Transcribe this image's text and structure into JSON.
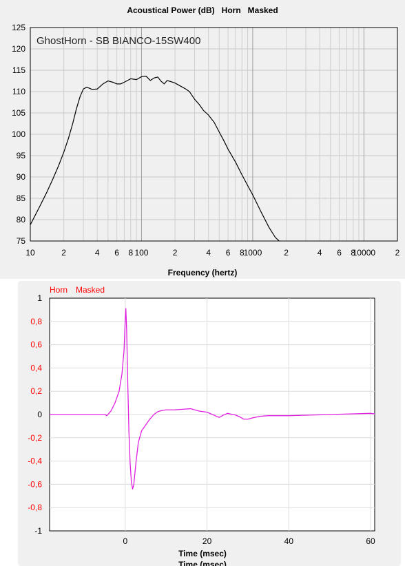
{
  "chart_data": [
    {
      "type": "line",
      "title": "Acoustical Power (dB)   Horn   Masked",
      "annotation": "GhostHorn - SB BIANCO-15SW400",
      "xlabel": "Frequency (hertz)",
      "ylabel": "",
      "xscale": "log",
      "xlim": [
        10,
        20000
      ],
      "ylim": [
        75,
        125
      ],
      "grid": true,
      "y_ticks": [
        "125",
        "120",
        "115",
        "110",
        "105",
        "100",
        "95",
        "90",
        "85",
        "80",
        "75"
      ],
      "x_ticks": [
        {
          "value": 10,
          "label": "10"
        },
        {
          "value": 20,
          "label": "2"
        },
        {
          "value": 40,
          "label": "4"
        },
        {
          "value": 60,
          "label": "6"
        },
        {
          "value": 80,
          "label": "8"
        },
        {
          "value": 100,
          "label": "100"
        },
        {
          "value": 200,
          "label": "2"
        },
        {
          "value": 400,
          "label": "4"
        },
        {
          "value": 600,
          "label": "6"
        },
        {
          "value": 800,
          "label": "8"
        },
        {
          "value": 1000,
          "label": "1000"
        },
        {
          "value": 2000,
          "label": "2"
        },
        {
          "value": 4000,
          "label": "4"
        },
        {
          "value": 6000,
          "label": "6"
        },
        {
          "value": 8000,
          "label": "8"
        },
        {
          "value": 10000,
          "label": "10000"
        },
        {
          "value": 20000,
          "label": "2"
        }
      ],
      "series": [
        {
          "color": "#000000",
          "x": [
            10,
            12,
            14,
            16,
            18,
            20,
            22,
            24,
            26,
            28,
            30,
            32,
            34,
            36,
            40,
            45,
            50,
            55,
            60,
            65,
            70,
            80,
            90,
            100,
            110,
            120,
            130,
            140,
            150,
            160,
            170,
            180,
            190,
            200,
            220,
            250,
            270,
            300,
            330,
            360,
            400,
            450,
            500,
            550,
            600,
            700,
            800,
            900,
            1000,
            1200,
            1400,
            1600,
            1700,
            1800
          ],
          "y": [
            78.8,
            82.8,
            86.3,
            89.6,
            92.7,
            95.8,
            99,
            102.4,
            106,
            108.8,
            110.6,
            111,
            110.8,
            110.5,
            110.6,
            111.8,
            112.5,
            112.2,
            111.8,
            111.8,
            112.2,
            113,
            112.8,
            113.5,
            113.6,
            112.6,
            113.2,
            113.4,
            112.4,
            111.8,
            112.6,
            112.4,
            112.2,
            112,
            111.4,
            110.6,
            110,
            108.2,
            107,
            105.6,
            104.5,
            102.8,
            100.5,
            98.5,
            96.5,
            93.5,
            90.5,
            88,
            85.8,
            81.6,
            78.2,
            75.8,
            75.2,
            74.5
          ]
        }
      ]
    },
    {
      "type": "line",
      "legend": [
        "Horn",
        "Masked"
      ],
      "xlabel": "Time (msec)",
      "xlabel_repeat": "Time (msec)",
      "ylabel": "",
      "xlim": [
        -18.5,
        61
      ],
      "ylim": [
        -1,
        1
      ],
      "grid": true,
      "y_ticks": [
        {
          "value": 1,
          "label": "1",
          "color": "#000000"
        },
        {
          "value": 0.8,
          "label": "0,8",
          "color": "#ff0000"
        },
        {
          "value": 0.6,
          "label": "0,6",
          "color": "#ff0000"
        },
        {
          "value": 0.4,
          "label": "0,4",
          "color": "#ff0000"
        },
        {
          "value": 0.2,
          "label": "0,2",
          "color": "#ff0000"
        },
        {
          "value": 0,
          "label": "0",
          "color": "#000000"
        },
        {
          "value": -0.2,
          "label": "-0,2",
          "color": "#ff0000"
        },
        {
          "value": -0.4,
          "label": "-0,4",
          "color": "#ff0000"
        },
        {
          "value": -0.6,
          "label": "-0,6",
          "color": "#ff0000"
        },
        {
          "value": -0.8,
          "label": "-0,8",
          "color": "#ff0000"
        },
        {
          "value": -1,
          "label": "-1",
          "color": "#000000"
        }
      ],
      "x_ticks": [
        {
          "value": 0,
          "label": "0"
        },
        {
          "value": 20,
          "label": "20"
        },
        {
          "value": 40,
          "label": "40"
        },
        {
          "value": 60,
          "label": "60"
        }
      ],
      "series": [
        {
          "color": "#e020e0",
          "x": [
            -18.5,
            -5,
            -4.5,
            -3.5,
            -2.5,
            -1.5,
            -0.8,
            -0.3,
            0,
            0.15,
            0.35,
            0.6,
            0.9,
            1.2,
            1.5,
            1.8,
            2.1,
            2.6,
            3.2,
            4,
            5,
            6,
            7,
            8,
            9,
            10,
            12,
            14,
            16,
            17,
            18,
            20,
            22,
            23,
            24,
            25,
            27,
            28,
            29,
            30,
            31,
            33,
            35,
            40,
            45,
            50,
            55,
            60,
            61
          ],
          "y": [
            0,
            0,
            -0.01,
            0.03,
            0.1,
            0.2,
            0.35,
            0.55,
            0.82,
            0.91,
            0.72,
            0.3,
            -0.15,
            -0.42,
            -0.58,
            -0.64,
            -0.6,
            -0.42,
            -0.24,
            -0.14,
            -0.09,
            -0.04,
            0,
            0.025,
            0.035,
            0.04,
            0.04,
            0.045,
            0.05,
            0.04,
            0.03,
            0.02,
            -0.01,
            -0.025,
            -0.005,
            0.01,
            -0.005,
            -0.02,
            -0.04,
            -0.04,
            -0.03,
            -0.015,
            -0.01,
            -0.01,
            -0.005,
            0,
            0.005,
            0.01,
            0.005
          ]
        }
      ]
    }
  ]
}
